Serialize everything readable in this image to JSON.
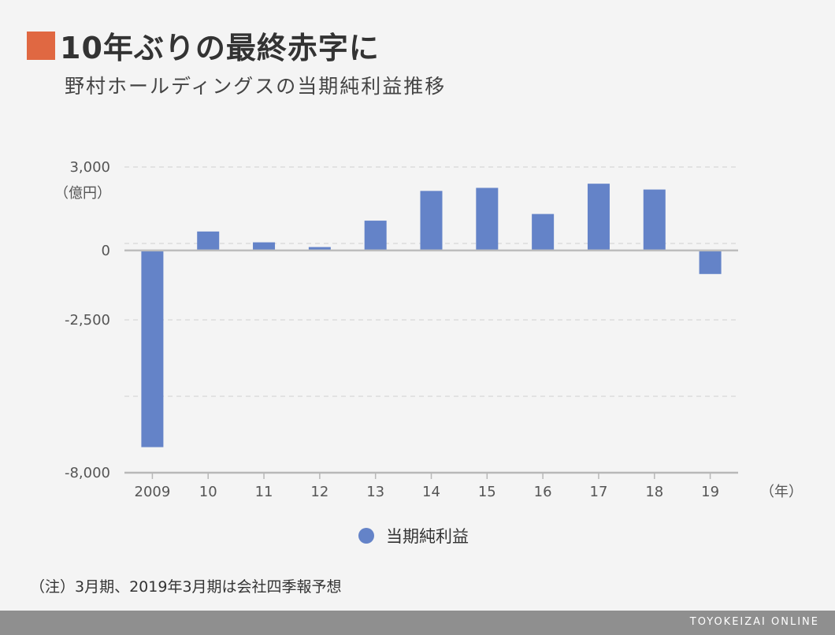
{
  "title": "10年ぶりの最終赤字に",
  "subtitle": "野村ホールディングスの当期純利益推移",
  "note": "（注）3月期、2019年3月期は会社四季報予想",
  "footer": "TOYOKEIZAI ONLINE",
  "colors": {
    "bar": "#6483c8",
    "title_accent": "#e06842"
  },
  "chart_data": {
    "type": "bar",
    "categories": [
      "2009",
      "10",
      "11",
      "12",
      "13",
      "14",
      "15",
      "16",
      "17",
      "18",
      "19"
    ],
    "series": [
      {
        "name": "当期純利益",
        "values": [
          -7080,
          680,
          290,
          120,
          1070,
          2140,
          2250,
          1310,
          2400,
          2190,
          -850
        ]
      }
    ],
    "y_unit": "（億円）",
    "x_unit": "（年）",
    "ylim": [
      -8000,
      3000
    ],
    "yticks": [
      3000,
      0,
      -2500,
      -8000
    ],
    "ytick_labels": [
      "3,000",
      "0",
      "-2,500",
      "-8,000"
    ],
    "gridlines": [
      3000,
      250,
      -2500,
      -5250
    ],
    "legend": "bottom-center"
  }
}
